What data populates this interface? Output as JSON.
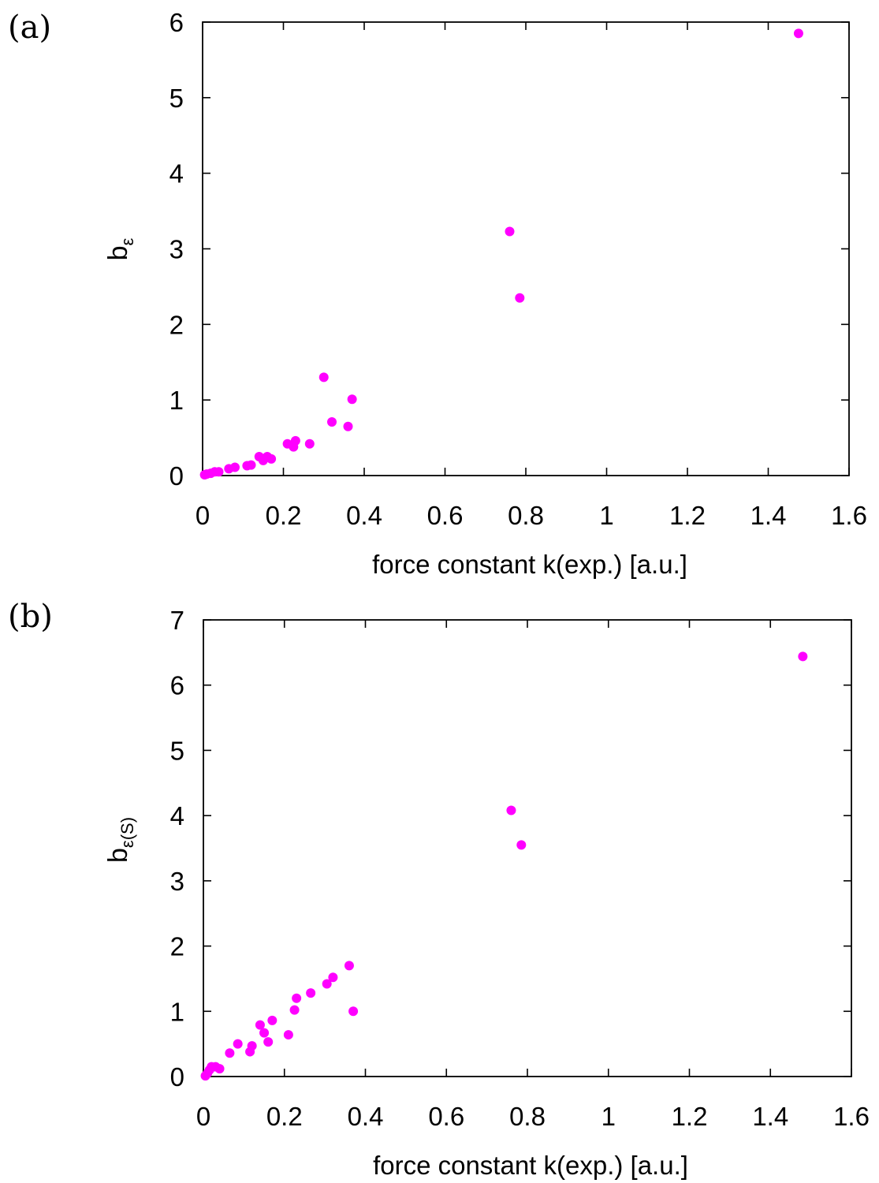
{
  "colors": {
    "point": "#ff00ff",
    "axis": "#000000",
    "background": "#ffffff"
  },
  "chart_data": [
    {
      "type": "scatter",
      "panel_label": "(a)",
      "xlabel": "force constant k(exp.) [a.u.]",
      "ylabel_main": "b",
      "ylabel_sub": "ε",
      "xlim": [
        0,
        1.6
      ],
      "ylim": [
        0,
        6
      ],
      "xticks": [
        "0",
        "0.2",
        "0.4",
        "0.6",
        "0.8",
        "1",
        "1.2",
        "1.4",
        "1.6"
      ],
      "yticks": [
        "0",
        "1",
        "2",
        "3",
        "4",
        "5",
        "6"
      ],
      "grid": false,
      "points": [
        [
          0.005,
          0.01
        ],
        [
          0.01,
          0.02
        ],
        [
          0.02,
          0.03
        ],
        [
          0.03,
          0.05
        ],
        [
          0.04,
          0.05
        ],
        [
          0.065,
          0.09
        ],
        [
          0.08,
          0.11
        ],
        [
          0.11,
          0.13
        ],
        [
          0.12,
          0.14
        ],
        [
          0.14,
          0.25
        ],
        [
          0.15,
          0.2
        ],
        [
          0.16,
          0.25
        ],
        [
          0.17,
          0.22
        ],
        [
          0.21,
          0.42
        ],
        [
          0.225,
          0.38
        ],
        [
          0.23,
          0.46
        ],
        [
          0.265,
          0.42
        ],
        [
          0.3,
          1.3
        ],
        [
          0.32,
          0.71
        ],
        [
          0.36,
          0.65
        ],
        [
          0.37,
          1.01
        ],
        [
          0.76,
          3.23
        ],
        [
          0.785,
          2.35
        ],
        [
          1.475,
          5.85
        ]
      ]
    },
    {
      "type": "scatter",
      "panel_label": "(b)",
      "xlabel": "force constant k(exp.) [a.u.]",
      "ylabel_main": "b",
      "ylabel_sub": "ε(S)",
      "xlim": [
        0,
        1.6
      ],
      "ylim": [
        0,
        7
      ],
      "xticks": [
        "0",
        "0.2",
        "0.4",
        "0.6",
        "0.8",
        "1",
        "1.2",
        "1.4",
        "1.6"
      ],
      "yticks": [
        "0",
        "1",
        "2",
        "3",
        "4",
        "5",
        "6",
        "7"
      ],
      "grid": false,
      "points": [
        [
          0.005,
          0.01
        ],
        [
          0.01,
          0.05
        ],
        [
          0.015,
          0.1
        ],
        [
          0.02,
          0.15
        ],
        [
          0.03,
          0.15
        ],
        [
          0.04,
          0.12
        ],
        [
          0.065,
          0.36
        ],
        [
          0.085,
          0.5
        ],
        [
          0.115,
          0.38
        ],
        [
          0.12,
          0.47
        ],
        [
          0.14,
          0.79
        ],
        [
          0.15,
          0.67
        ],
        [
          0.16,
          0.53
        ],
        [
          0.17,
          0.86
        ],
        [
          0.21,
          0.64
        ],
        [
          0.225,
          1.02
        ],
        [
          0.23,
          1.2
        ],
        [
          0.265,
          1.28
        ],
        [
          0.305,
          1.42
        ],
        [
          0.32,
          1.52
        ],
        [
          0.36,
          1.7
        ],
        [
          0.37,
          1.0
        ],
        [
          0.76,
          4.08
        ],
        [
          0.785,
          3.55
        ],
        [
          1.48,
          6.44
        ]
      ]
    }
  ]
}
